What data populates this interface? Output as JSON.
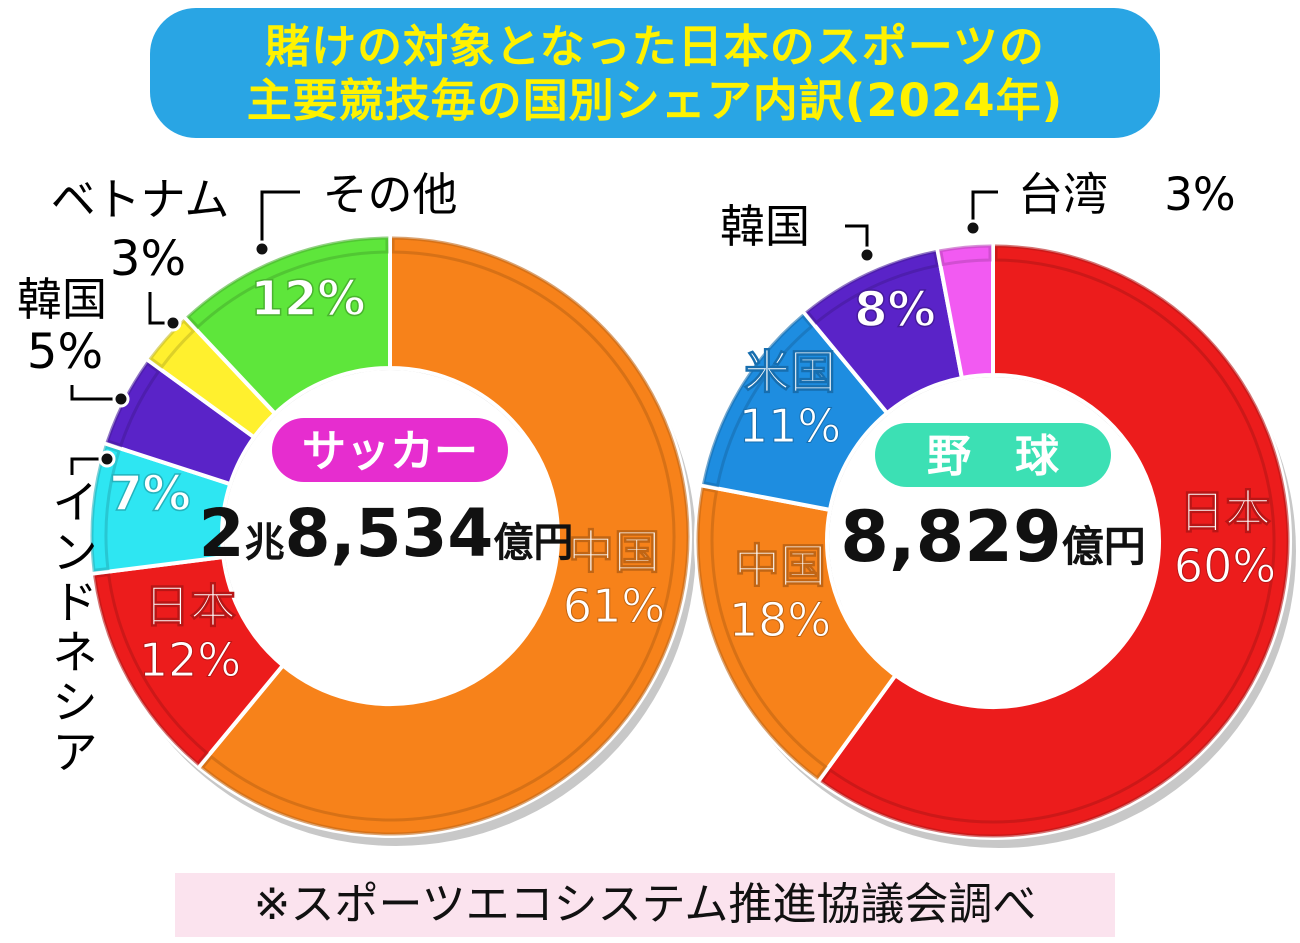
{
  "title": {
    "line1": "賭けの対象となった日本のスポーツの",
    "line2": "主要競技毎の国別シェア内訳(2024年)"
  },
  "source": "※スポーツエコシステム推進協議会調べ",
  "chart_data": [
    {
      "type": "pie",
      "donut": true,
      "sport": "サッカー",
      "total": {
        "number": "2",
        "unit1": "兆",
        "number2": "8,534",
        "unit2": "億円"
      },
      "colors": {
        "badge": "#e62dcf"
      },
      "slices": [
        {
          "label": "中国",
          "value": 61,
          "value_text": "61%",
          "color": "#f7821a",
          "label_placement": "inside"
        },
        {
          "label": "日本",
          "value": 12,
          "value_text": "12%",
          "color": "#ec1c1c",
          "label_placement": "inside"
        },
        {
          "label": "インドネシア",
          "value": 7,
          "value_text": "7%",
          "color": "#2ee6f2",
          "label_placement": "outside"
        },
        {
          "label": "韓国",
          "value": 5,
          "value_text": "5%",
          "color": "#5a23c8",
          "label_placement": "outside"
        },
        {
          "label": "ベトナム",
          "value": 3,
          "value_text": "3%",
          "color": "#fff02e",
          "label_placement": "outside"
        },
        {
          "label": "その他",
          "value": 12,
          "value_text": "12%",
          "color": "#5ee63b",
          "label_placement": "outside"
        }
      ]
    },
    {
      "type": "pie",
      "donut": true,
      "sport": "野　球",
      "total": {
        "number": "8,829",
        "unit": "億円"
      },
      "colors": {
        "badge": "#3ce0b4"
      },
      "slices": [
        {
          "label": "日本",
          "value": 60,
          "value_text": "60%",
          "color": "#ec1c1c",
          "label_placement": "inside"
        },
        {
          "label": "中国",
          "value": 18,
          "value_text": "18%",
          "color": "#f7821a",
          "label_placement": "inside"
        },
        {
          "label": "米国",
          "value": 11,
          "value_text": "11%",
          "color": "#1e8de0",
          "label_placement": "inside"
        },
        {
          "label": "韓国",
          "value": 8,
          "value_text": "8%",
          "color": "#5a23c8",
          "label_placement": "outside"
        },
        {
          "label": "台湾",
          "value": 3,
          "value_text": "3%",
          "color": "#f25af2",
          "label_placement": "outside"
        }
      ]
    }
  ]
}
